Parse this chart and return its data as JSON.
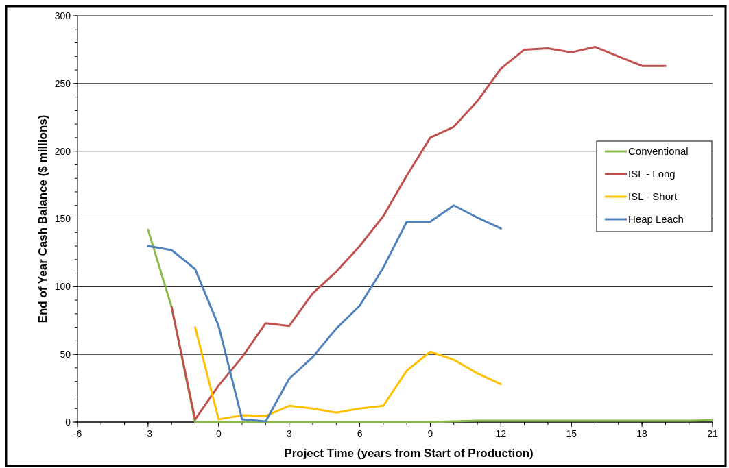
{
  "chart_data": {
    "type": "line",
    "xlabel": "Project Time (years from Start of Production)",
    "ylabel": "End of Year Cash Balance ($ millions)",
    "xlim": [
      -6,
      21
    ],
    "xticks": [
      -6,
      -3,
      0,
      3,
      6,
      9,
      12,
      15,
      18,
      21
    ],
    "ylim": [
      0,
      300
    ],
    "yticks": [
      0,
      50,
      100,
      150,
      200,
      250,
      300
    ],
    "grid": "y",
    "legend": "right",
    "marker": "none",
    "line_style": "solid",
    "series": [
      {
        "name": "Conventional",
        "color": "#8cbb4d",
        "x": [
          -3,
          -2,
          -1,
          0,
          1,
          2,
          3,
          4,
          5,
          6,
          7,
          8,
          9,
          10,
          11,
          12,
          13,
          14,
          15,
          16,
          17,
          18,
          19,
          20,
          21
        ],
        "values": [
          142,
          85,
          0,
          0,
          0,
          0,
          0,
          0,
          0,
          0,
          0,
          0,
          0,
          0.5,
          1,
          1,
          1,
          1,
          1,
          1,
          1,
          1,
          1,
          1,
          1.5
        ]
      },
      {
        "name": "ISL - Long",
        "color": "#c0504d",
        "x": [
          -2,
          -1,
          0,
          1,
          2,
          3,
          4,
          5,
          6,
          7,
          8,
          9,
          10,
          11,
          12,
          13,
          14,
          15,
          16,
          17,
          18,
          19
        ],
        "values": [
          85,
          2,
          27,
          48,
          73,
          71,
          95,
          111,
          130,
          152,
          182,
          210,
          218,
          237,
          261,
          275,
          276,
          273,
          277,
          270,
          263,
          263
        ]
      },
      {
        "name": "ISL - Short",
        "color": "#ffc000",
        "x": [
          -1,
          0,
          1,
          2,
          3,
          4,
          5,
          6,
          7,
          8,
          9,
          10,
          11,
          12
        ],
        "values": [
          70,
          2,
          5,
          4.5,
          12,
          10,
          7,
          10,
          12,
          38,
          52,
          46,
          36,
          28
        ]
      },
      {
        "name": "Heap Leach",
        "color": "#4f81bd",
        "x": [
          -3,
          -2,
          -1,
          0,
          1,
          2,
          3,
          4,
          5,
          6,
          7,
          8,
          9,
          10,
          11,
          12
        ],
        "values": [
          130,
          127,
          113,
          71,
          2,
          0.5,
          32,
          48,
          69,
          86,
          114,
          148,
          148,
          160,
          151,
          143
        ]
      }
    ]
  }
}
